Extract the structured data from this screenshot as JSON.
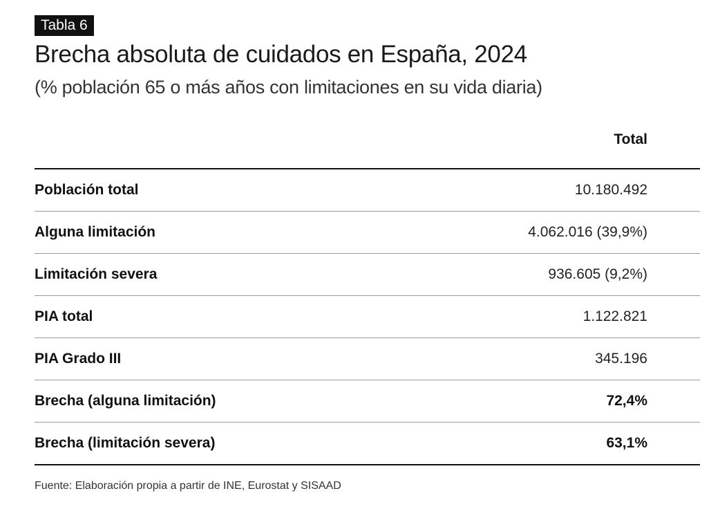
{
  "badge": "Tabla 6",
  "title": "Brecha absoluta de cuidados en España, 2024",
  "subtitle": "(% población 65 o más años con limitaciones en su vida diaria)",
  "table": {
    "column_header": "Total",
    "rows": [
      {
        "label": "Población total",
        "value": "10.180.492",
        "bold": false
      },
      {
        "label": "Alguna limitación",
        "value": "4.062.016 (39,9%)",
        "bold": false
      },
      {
        "label": "Limitación severa",
        "value": "936.605 (9,2%)",
        "bold": false
      },
      {
        "label": "PIA total",
        "value": "1.122.821",
        "bold": false
      },
      {
        "label": "PIA Grado III",
        "value": "345.196",
        "bold": false
      },
      {
        "label": "Brecha (alguna limitación)",
        "value": "72,4%",
        "bold": true
      },
      {
        "label": "Brecha (limitación severa)",
        "value": "63,1%",
        "bold": true
      }
    ]
  },
  "source": "Fuente: Elaboración propia a partir de INE, Eurostat y SISAAD"
}
